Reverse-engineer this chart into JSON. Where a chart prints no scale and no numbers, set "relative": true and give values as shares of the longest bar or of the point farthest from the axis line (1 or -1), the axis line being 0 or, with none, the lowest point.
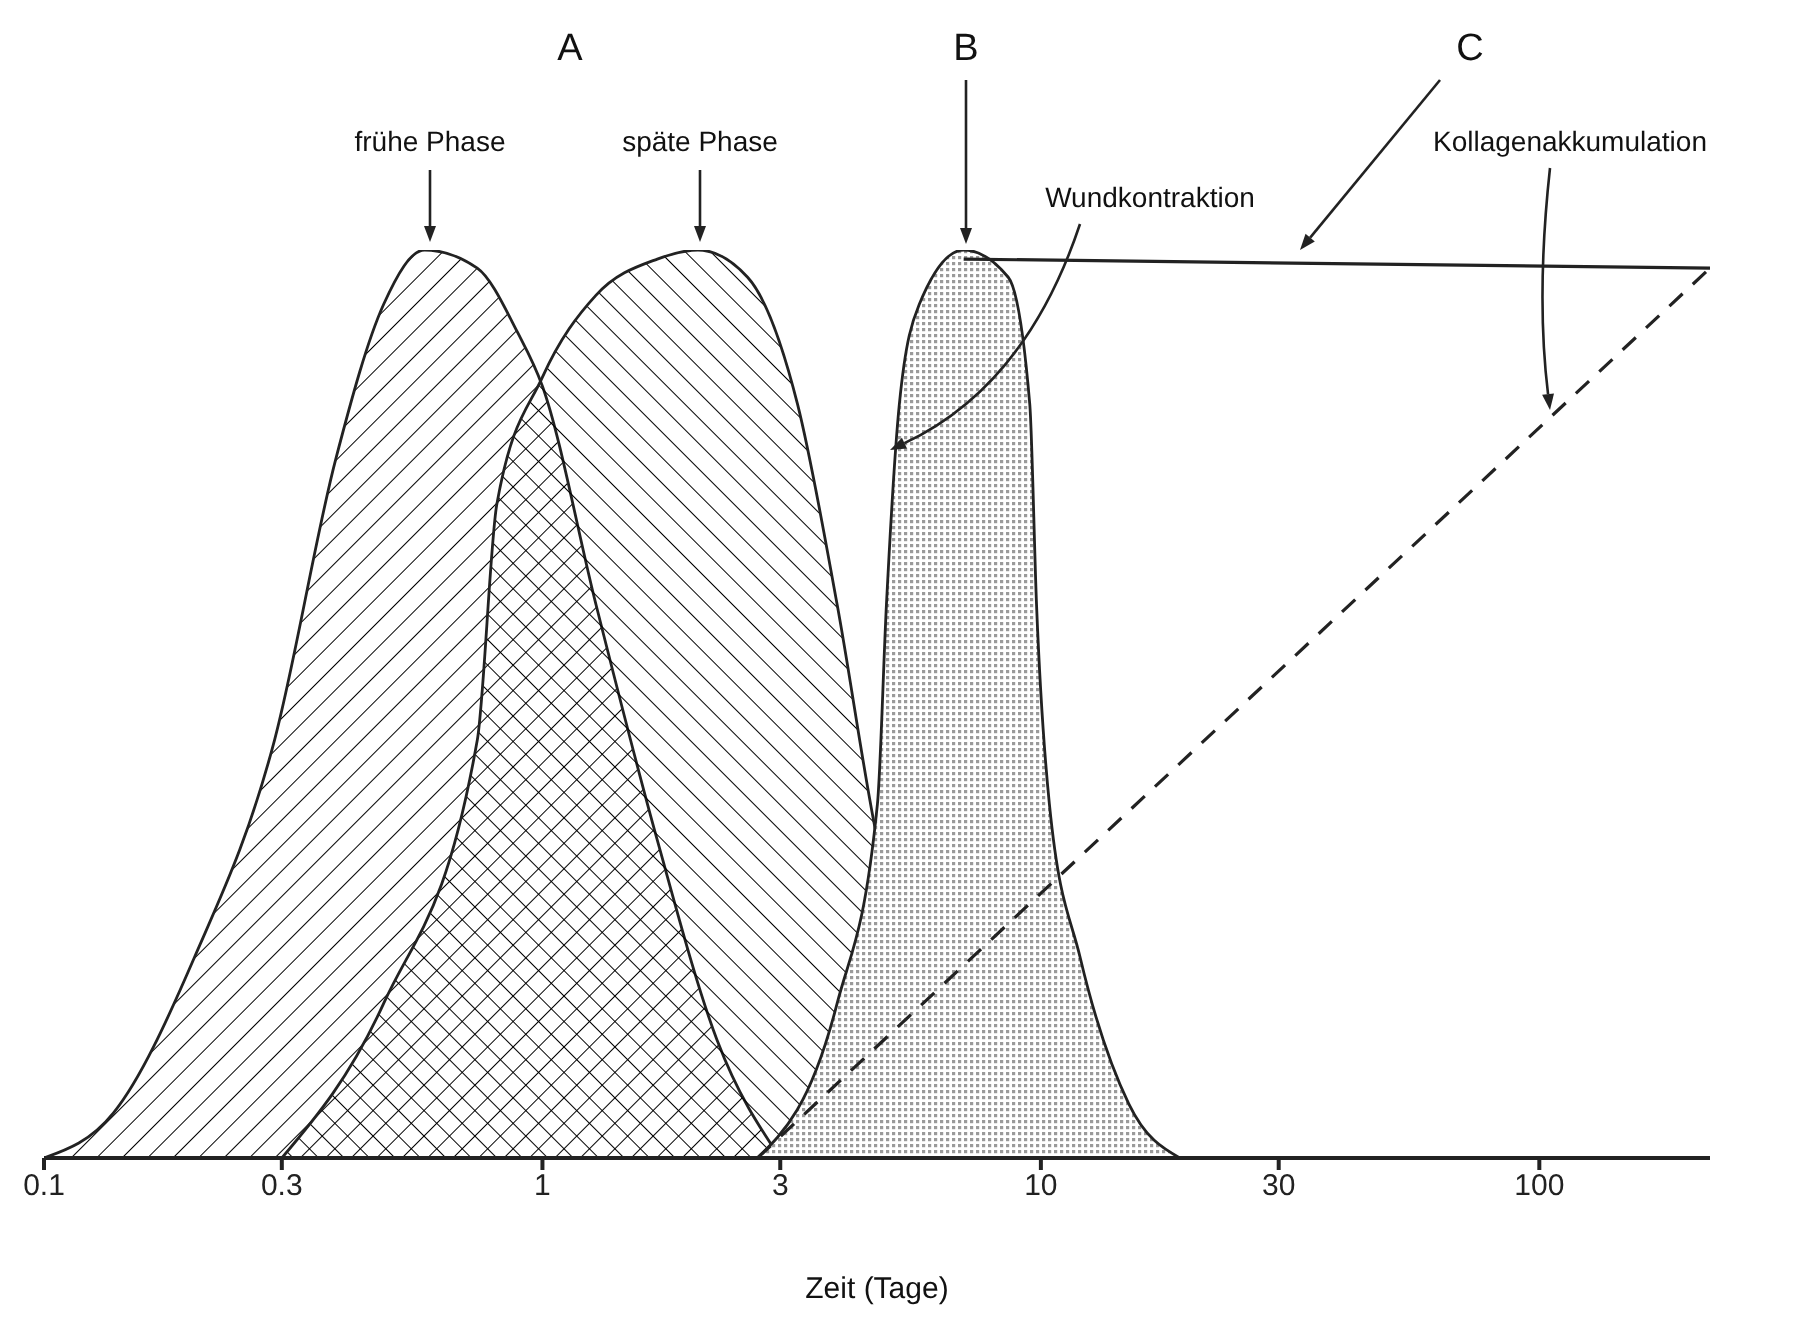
{
  "chart_data": {
    "type": "area",
    "relative": true,
    "xlabel": "Zeit (Tage)",
    "log": "x",
    "xlim": [
      0.1,
      220
    ],
    "xticks": [
      0.1,
      0.3,
      1,
      3,
      10,
      30,
      100
    ],
    "grid": false,
    "series": [
      {
        "color": "#000000",
        "x": [
          0.1,
          0.138,
          0.2,
          0.29,
          0.385,
          0.48,
          0.58,
          0.74,
          0.89,
          1,
          1.28,
          1.7,
          2.24,
          3
        ],
        "values": [
          0,
          0.05,
          0.22,
          0.46,
          0.77,
          0.94,
          1,
          0.98,
          0.91,
          0.85,
          0.61,
          0.35,
          0.13,
          0
        ]
      },
      {
        "color": "#000000",
        "x": [
          0.3,
          0.48,
          0.74,
          0.81,
          1,
          1.28,
          1.7,
          2.05,
          2.58,
          3.25,
          3.9,
          4.7,
          6.2,
          8.2,
          10
        ],
        "values": [
          0,
          0.17,
          0.46,
          0.72,
          0.86,
          0.95,
          0.99,
          1,
          0.97,
          0.83,
          0.61,
          0.35,
          0.13,
          0.03,
          0
        ]
      },
      {
        "color": "#9a9a9a",
        "x": [
          2.7,
          3.9,
          4.7,
          4.9,
          5.2,
          5.7,
          7,
          8.6,
          9.5,
          9.8,
          10.4,
          12,
          15,
          19
        ],
        "values": [
          0,
          0.17,
          0.39,
          0.61,
          0.83,
          0.94,
          1,
          0.97,
          0.83,
          0.61,
          0.39,
          0.22,
          0.06,
          0
        ]
      },
      {
        "type": "line",
        "color": "#222222",
        "line_style": "solid",
        "x": [
          7,
          220
        ],
        "values": [
          0.99,
          0.98
        ]
      },
      {
        "type": "line",
        "color": "#222222",
        "line_style": "dashed",
        "x": [
          2.7,
          220
        ],
        "values": [
          0,
          0.98
        ]
      }
    ],
    "annotations": [
      "A",
      "frühe Phase",
      "späte Phase",
      "B",
      "Wundkontraktion",
      "C",
      "Kollagenakkumulation"
    ]
  }
}
